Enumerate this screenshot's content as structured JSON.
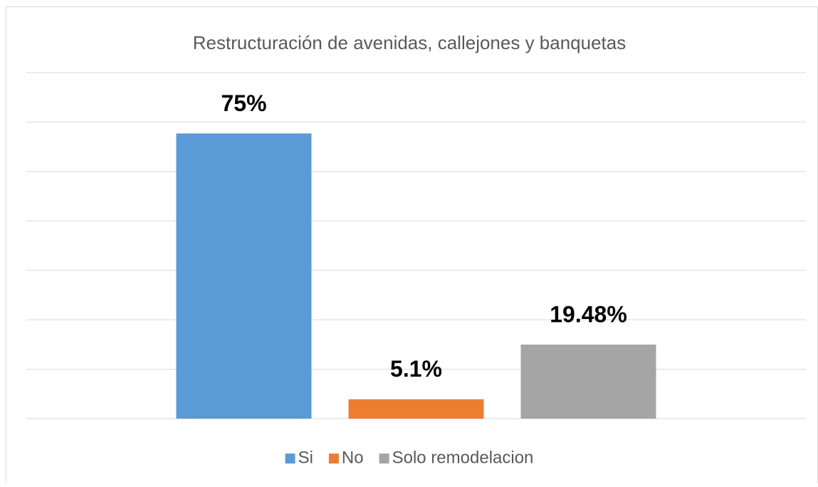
{
  "chart_data": {
    "type": "bar",
    "title": "Restructuración de avenidas, callejones y banquetas",
    "categories": [
      null
    ],
    "series": [
      {
        "name": "Si",
        "color": "#5b9bd5",
        "values": [
          75
        ],
        "value_labels": [
          "75%"
        ]
      },
      {
        "name": "No",
        "color": "#ed7d31",
        "values": [
          5.1
        ],
        "value_labels": [
          "5.1%"
        ]
      },
      {
        "name": "Solo remodelacion",
        "color": "#a5a5a5",
        "values": [
          19.48
        ],
        "value_labels": [
          "19.48%"
        ]
      }
    ],
    "ylim": [
      0,
      91
    ],
    "yticks": [
      0,
      13,
      26,
      39,
      52,
      65,
      78,
      91
    ],
    "grid": true,
    "legend": "bottom"
  }
}
